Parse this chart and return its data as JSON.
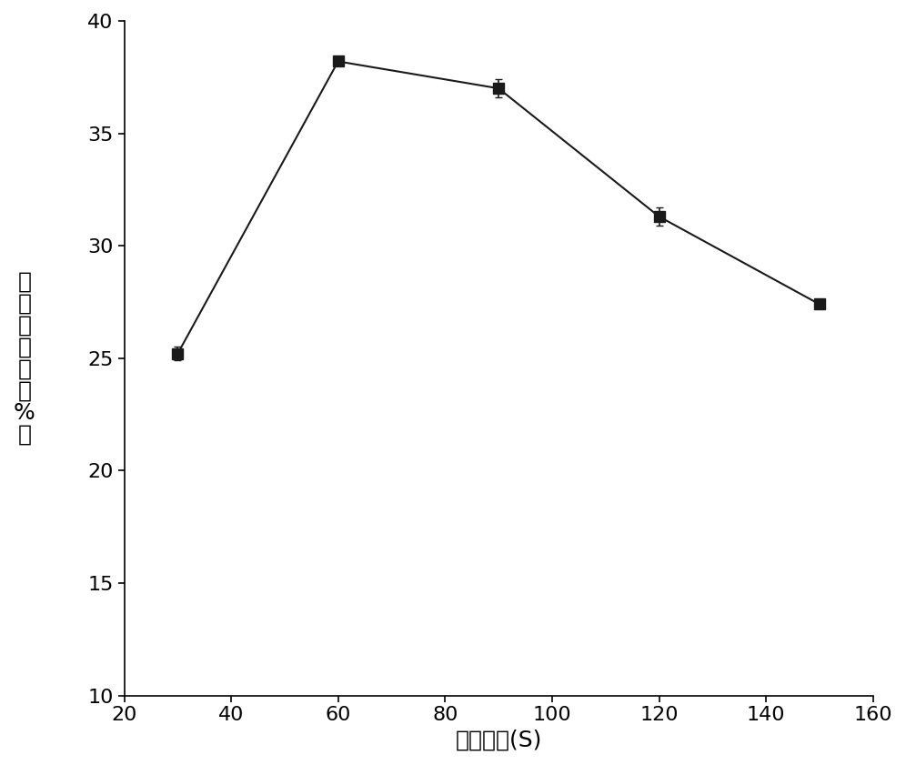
{
  "x": [
    30,
    60,
    90,
    120,
    150
  ],
  "y": [
    25.2,
    38.2,
    37.0,
    31.3,
    27.4
  ],
  "yerr": [
    0.3,
    0.1,
    0.4,
    0.4,
    0.1
  ],
  "xlim": [
    20,
    160
  ],
  "ylim": [
    10,
    40
  ],
  "xticks": [
    20,
    40,
    60,
    80,
    100,
    120,
    140,
    160
  ],
  "yticks": [
    10,
    15,
    20,
    25,
    30,
    35,
    40
  ],
  "xlabel": "微波时间(S)",
  "ylabel": "辛酸插入率（%）",
  "line_color": "#1a1a1a",
  "marker": "s",
  "marker_size": 8,
  "marker_color": "#1a1a1a",
  "linewidth": 1.5,
  "capsize": 3,
  "elinewidth": 1.2,
  "xlabel_fontsize": 18,
  "ylabel_fontsize": 18,
  "tick_fontsize": 16,
  "background_color": "#ffffff"
}
